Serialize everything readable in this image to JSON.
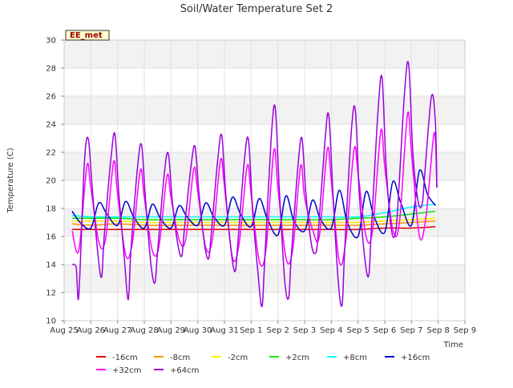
{
  "chart_data": {
    "type": "line",
    "title": "Soil/Water Temperature Set 2",
    "station_label": "EE_met",
    "xlabel": "Time",
    "ylabel": "Temperature (C)",
    "ylim": [
      10,
      30
    ],
    "yticks": [
      10,
      12,
      14,
      16,
      18,
      20,
      22,
      24,
      26,
      28,
      30
    ],
    "xlim_days": [
      0,
      15
    ],
    "xtick_labels": [
      "Aug 25",
      "Aug 26",
      "Aug 27",
      "Aug 28",
      "Aug 29",
      "Aug 30",
      "Aug 31",
      "Sep 1",
      "Sep 2",
      "Sep 3",
      "Sep 4",
      "Sep 5",
      "Sep 6",
      "Sep 7",
      "Sep 8",
      "Sep 9"
    ],
    "grid": true,
    "legend_position": "bottom",
    "series": [
      {
        "name": "-16cm",
        "color": "#dd0000",
        "x": [
          0.3,
          1,
          2,
          3,
          4,
          5,
          6,
          7,
          8,
          9,
          10,
          11,
          12,
          13,
          13.9
        ],
        "y": [
          16.5,
          16.5,
          16.5,
          16.5,
          16.5,
          16.5,
          16.5,
          16.5,
          16.5,
          16.5,
          16.5,
          16.5,
          16.6,
          16.6,
          16.7
        ]
      },
      {
        "name": "-8cm",
        "color": "#ff9900",
        "x": [
          0.3,
          1,
          2,
          3,
          4,
          5,
          6,
          7,
          8,
          9,
          10,
          11,
          12,
          13,
          13.9
        ],
        "y": [
          16.9,
          16.8,
          16.9,
          16.8,
          16.8,
          16.8,
          16.8,
          16.8,
          16.8,
          16.8,
          16.8,
          16.8,
          16.9,
          17.0,
          17.1
        ]
      },
      {
        "name": "-2cm",
        "color": "#ffee00",
        "x": [
          0.3,
          1,
          2,
          3,
          4,
          5,
          6,
          7,
          8,
          9,
          10,
          11,
          12,
          13,
          13.9
        ],
        "y": [
          17.1,
          17.1,
          17.1,
          17.0,
          17.0,
          17.0,
          17.0,
          17.0,
          17.0,
          17.0,
          17.0,
          17.0,
          17.1,
          17.2,
          17.3
        ]
      },
      {
        "name": "+2cm",
        "color": "#00ee00",
        "x": [
          0.3,
          1,
          2,
          3,
          4,
          5,
          6,
          7,
          8,
          9,
          10,
          11,
          12,
          13,
          13.9
        ],
        "y": [
          17.3,
          17.3,
          17.3,
          17.2,
          17.2,
          17.2,
          17.2,
          17.2,
          17.2,
          17.2,
          17.2,
          17.3,
          17.4,
          17.6,
          17.8
        ]
      },
      {
        "name": "+8cm",
        "color": "#00ffff",
        "x": [
          0.3,
          1,
          2,
          3,
          4,
          5,
          6,
          7,
          8,
          9,
          10,
          11,
          12,
          13,
          13.9
        ],
        "y": [
          17.5,
          17.4,
          17.4,
          17.4,
          17.4,
          17.4,
          17.4,
          17.4,
          17.4,
          17.4,
          17.4,
          17.4,
          17.7,
          18.1,
          18.3
        ]
      },
      {
        "name": "+16cm",
        "color": "#0000cc",
        "x": [
          0.3,
          0.6,
          1,
          1.3,
          1.6,
          2,
          2.3,
          2.6,
          3,
          3.3,
          3.6,
          4,
          4.3,
          4.6,
          5,
          5.3,
          5.6,
          6,
          6.3,
          6.6,
          7,
          7.3,
          7.6,
          8,
          8.3,
          8.6,
          9,
          9.3,
          9.6,
          10,
          10.3,
          10.6,
          11,
          11.3,
          11.6,
          12,
          12.3,
          12.6,
          13,
          13.3,
          13.6,
          13.9
        ],
        "y": [
          17.8,
          17.0,
          16.6,
          18.4,
          17.6,
          16.8,
          18.5,
          17.4,
          16.6,
          18.3,
          17.3,
          16.6,
          18.2,
          17.4,
          16.8,
          18.4,
          17.4,
          16.8,
          18.8,
          17.6,
          16.7,
          18.7,
          17.3,
          16.1,
          18.9,
          17.1,
          16.4,
          18.6,
          17.2,
          16.6,
          19.3,
          17.0,
          16.0,
          19.2,
          17.4,
          16.3,
          19.9,
          18.4,
          16.8,
          20.7,
          19.0,
          18.2
        ]
      },
      {
        "name": "+32cm",
        "color": "#ff00ff",
        "x": [
          0.3,
          0.55,
          0.85,
          1.0,
          1.3,
          1.55,
          1.85,
          2.0,
          2.3,
          2.55,
          2.85,
          3.0,
          3.3,
          3.55,
          3.85,
          4.0,
          4.3,
          4.55,
          4.85,
          5.0,
          5.3,
          5.55,
          5.85,
          6.0,
          6.3,
          6.55,
          6.85,
          7.0,
          7.3,
          7.55,
          7.85,
          8.0,
          8.3,
          8.55,
          8.85,
          9.0,
          9.3,
          9.55,
          9.85,
          10.0,
          10.3,
          10.55,
          10.85,
          11.0,
          11.3,
          11.55,
          11.85,
          12.0,
          12.3,
          12.55,
          12.85,
          13.0,
          13.3,
          13.55,
          13.85,
          13.95
        ],
        "y": [
          16.4,
          15.0,
          21.0,
          19.5,
          15.6,
          15.8,
          21.3,
          19.0,
          14.7,
          15.5,
          20.7,
          18.8,
          15.0,
          15.3,
          20.3,
          18.8,
          15.8,
          15.8,
          20.8,
          19.2,
          15.2,
          15.8,
          21.4,
          19.6,
          14.5,
          15.5,
          21.0,
          19.0,
          14.3,
          15.0,
          22.1,
          19.5,
          14.5,
          15.0,
          21.0,
          18.8,
          16.5,
          16.0,
          22.2,
          20.0,
          14.2,
          15.8,
          22.2,
          20.5,
          16.0,
          16.5,
          23.5,
          21.0,
          16.5,
          17.0,
          24.7,
          22.0,
          16.0,
          17.5,
          23.4,
          19.5
        ]
      },
      {
        "name": "+64cm",
        "color": "#9900dd",
        "x": [
          0.3,
          0.45,
          0.55,
          0.75,
          0.9,
          1.05,
          1.25,
          1.4,
          1.5,
          1.75,
          1.9,
          2.05,
          2.25,
          2.4,
          2.5,
          2.75,
          2.9,
          3.05,
          3.25,
          3.4,
          3.5,
          3.75,
          3.9,
          4.05,
          4.25,
          4.4,
          4.5,
          4.75,
          4.9,
          5.05,
          5.25,
          5.4,
          5.5,
          5.75,
          5.9,
          6.05,
          6.25,
          6.4,
          6.5,
          6.75,
          6.9,
          7.05,
          7.25,
          7.4,
          7.5,
          7.75,
          7.9,
          8.05,
          8.25,
          8.4,
          8.5,
          8.75,
          8.9,
          9.05,
          9.25,
          9.4,
          9.5,
          9.75,
          9.9,
          10.05,
          10.25,
          10.4,
          10.5,
          10.75,
          10.9,
          11.05,
          11.25,
          11.4,
          11.5,
          11.75,
          11.9,
          12.05,
          12.25,
          12.4,
          12.5,
          12.75,
          12.9,
          13.05,
          13.25,
          13.4,
          13.5,
          13.75,
          13.9,
          13.95
        ],
        "y": [
          14.0,
          13.8,
          11.8,
          21.0,
          23.0,
          19.5,
          15.0,
          13.1,
          16.0,
          21.5,
          23.3,
          19.0,
          14.5,
          11.5,
          15.0,
          21.0,
          22.5,
          18.5,
          14.0,
          12.7,
          15.0,
          20.5,
          21.9,
          18.5,
          15.5,
          14.6,
          16.5,
          21.0,
          22.4,
          19.0,
          15.5,
          14.4,
          16.0,
          21.5,
          23.2,
          19.0,
          15.0,
          13.5,
          15.5,
          21.5,
          22.9,
          18.0,
          13.5,
          11.0,
          14.0,
          23.0,
          25.2,
          19.5,
          13.0,
          11.6,
          14.5,
          21.0,
          23.0,
          19.0,
          15.5,
          14.8,
          16.0,
          22.5,
          24.7,
          19.5,
          13.0,
          11.1,
          15.0,
          23.5,
          25.0,
          19.0,
          14.5,
          13.2,
          16.5,
          25.0,
          27.3,
          21.0,
          16.5,
          16.2,
          18.5,
          26.5,
          28.2,
          22.0,
          18.5,
          18.3,
          20.5,
          26.0,
          24.0,
          19.5
        ]
      }
    ]
  }
}
